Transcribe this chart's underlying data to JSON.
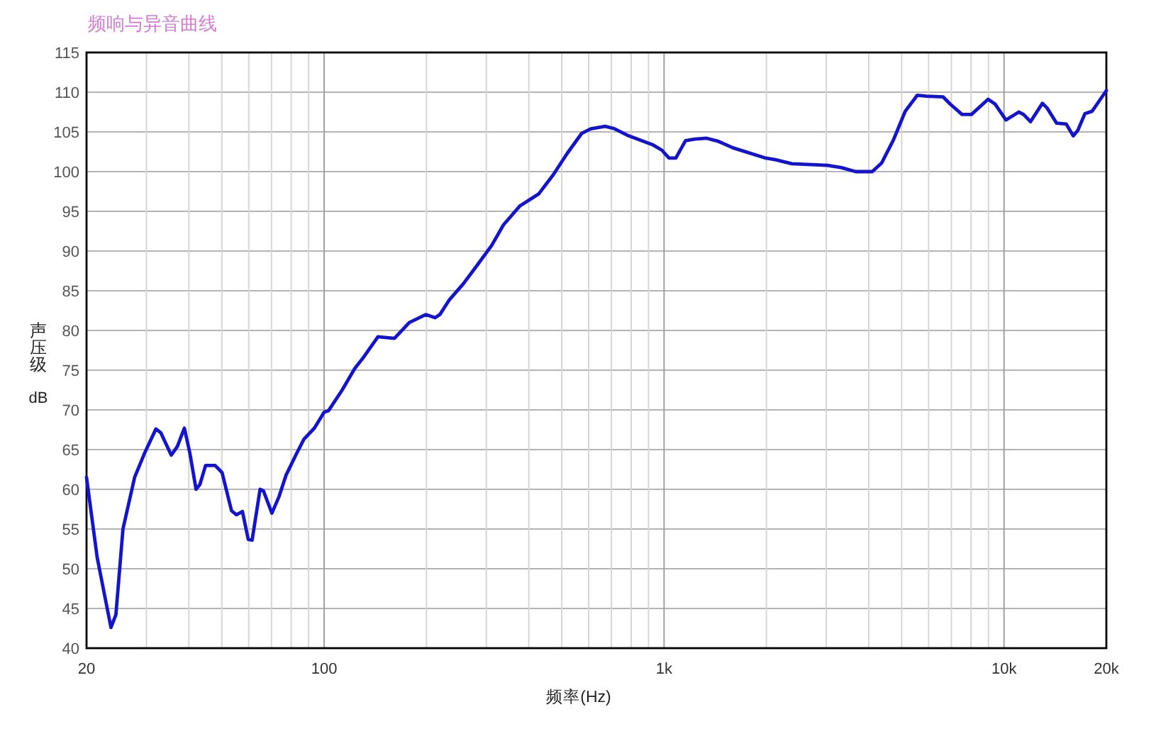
{
  "chart_data": {
    "type": "line",
    "title": "频响与异音曲线",
    "xlabel": "频率(Hz)",
    "ylabel": "声压级 dB",
    "log": "x",
    "grid": true,
    "xlim": [
      20,
      20000
    ],
    "ylim": [
      40,
      115
    ],
    "xticks": [
      20,
      {
        "value": 30,
        "label": null
      },
      {
        "value": 40,
        "label": null
      },
      {
        "value": 50,
        "label": null
      },
      {
        "value": 60,
        "label": null
      },
      {
        "value": 70,
        "label": null
      },
      {
        "value": 80,
        "label": null
      },
      {
        "value": 90,
        "label": null
      },
      100,
      {
        "value": 200,
        "label": null
      },
      {
        "value": 300,
        "label": null
      },
      {
        "value": 400,
        "label": null
      },
      {
        "value": 500,
        "label": null
      },
      {
        "value": 600,
        "label": null
      },
      {
        "value": 700,
        "label": null
      },
      {
        "value": 800,
        "label": null
      },
      {
        "value": 900,
        "label": null
      },
      {
        "value": 1000,
        "label": "1k"
      },
      {
        "value": 2000,
        "label": null
      },
      {
        "value": 3000,
        "label": null
      },
      {
        "value": 4000,
        "label": null
      },
      {
        "value": 5000,
        "label": null
      },
      {
        "value": 6000,
        "label": null
      },
      {
        "value": 7000,
        "label": null
      },
      {
        "value": 8000,
        "label": null
      },
      {
        "value": 9000,
        "label": null
      },
      {
        "value": 10000,
        "label": "10k"
      },
      {
        "value": 20000,
        "label": "20k"
      }
    ],
    "yticks": [
      40,
      45,
      50,
      55,
      60,
      65,
      70,
      75,
      80,
      85,
      90,
      95,
      100,
      105,
      110,
      115
    ],
    "color": "#1414cc",
    "x": [
      20,
      21.5,
      23.6,
      24.4,
      25.6,
      27.7,
      29.6,
      32,
      33.1,
      35.5,
      37,
      38.8,
      40.3,
      42,
      43.1,
      44.8,
      47.8,
      50.1,
      53.4,
      55.2,
      57.5,
      59.8,
      61.4,
      64.8,
      66.3,
      70.2,
      73.7,
      77.3,
      82.3,
      87.2,
      93.6,
      100,
      103,
      113,
      123,
      131,
      144,
      161,
      178,
      199,
      212,
      219,
      233,
      257,
      283,
      311,
      337,
      377,
      428,
      472,
      519,
      572,
      609,
      671,
      715,
      787,
      924,
      985,
      1034,
      1083,
      1156,
      1232,
      1335,
      1447,
      1593,
      1992,
      2124,
      2376,
      3020,
      3325,
      3660,
      4096,
      4368,
      4730,
      5122,
      5553,
      5916,
      6622,
      6946,
      7524,
      8022,
      8977,
      9417,
      10130,
      11050,
      11410,
      11970,
      12970,
      13390,
      14280,
      15230,
      15980,
      16490,
      17300,
      18160,
      20000
    ],
    "values": [
      61.5,
      51.4,
      42.6,
      44.2,
      55,
      61.5,
      64.5,
      67.6,
      67.1,
      64.3,
      65.4,
      67.7,
      64.5,
      60,
      60.6,
      63,
      63,
      62.1,
      57.3,
      56.8,
      57.2,
      53.7,
      53.6,
      60,
      59.8,
      57,
      59.1,
      61.8,
      64.2,
      66.3,
      67.7,
      69.7,
      69.9,
      72.5,
      75.2,
      76.7,
      79.2,
      79,
      81,
      82,
      81.6,
      82,
      83.8,
      85.9,
      88.3,
      90.7,
      93.3,
      95.7,
      97.2,
      99.6,
      102.3,
      104.8,
      105.4,
      105.7,
      105.4,
      104.5,
      103.4,
      102.7,
      101.7,
      101.7,
      103.9,
      104.1,
      104.2,
      103.8,
      103,
      101.7,
      101.5,
      101,
      100.8,
      100.5,
      100,
      100,
      101.1,
      104,
      107.6,
      109.6,
      109.5,
      109.4,
      108.5,
      107.2,
      107.2,
      109.1,
      108.5,
      106.5,
      107.5,
      107.2,
      106.3,
      108.6,
      108,
      106.1,
      106,
      104.5,
      105.2,
      107.3,
      107.6,
      110.2
    ]
  }
}
